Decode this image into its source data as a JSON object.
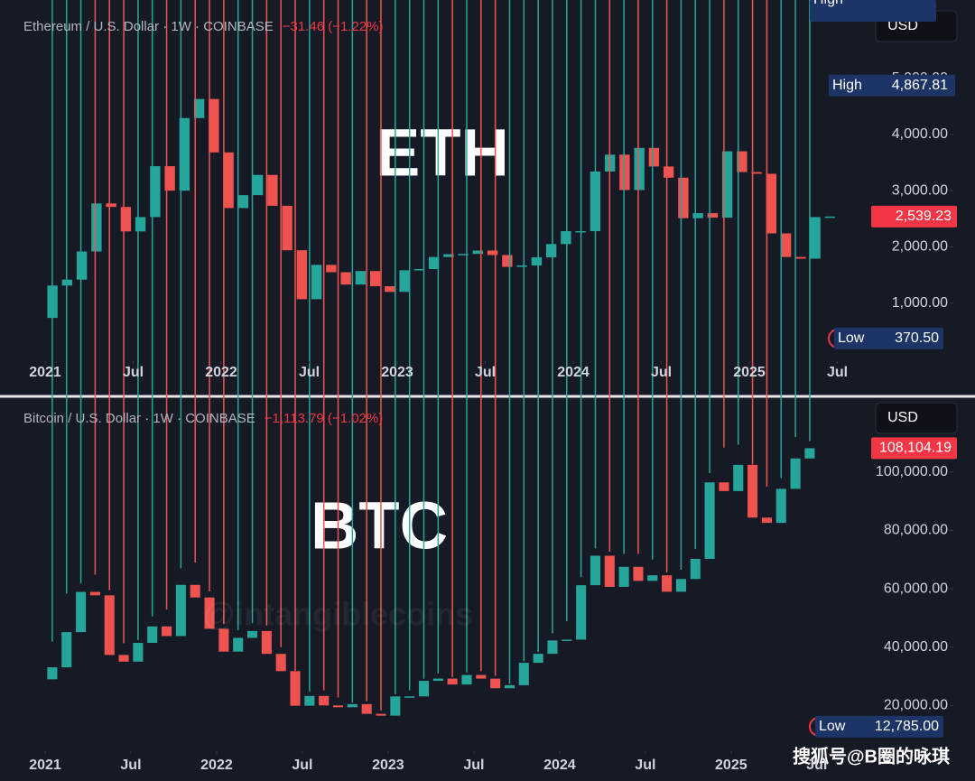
{
  "chart_data": [
    {
      "type": "candlestick",
      "title": "Ethereum / U.S. Dollar · 1W · COINBASE",
      "change": "−31.46 (−1.22%)",
      "overlay": "ETH",
      "currency": "USD",
      "up_color": "#26a69a",
      "down_color": "#ef5350",
      "grid": false,
      "x": [
        "2021-01",
        "2021-02",
        "2021-03",
        "2021-04",
        "2021-05",
        "2021-06",
        "2021-07",
        "2021-08",
        "2021-09",
        "2021-10",
        "2021-11",
        "2021-12",
        "2022-01",
        "2022-02",
        "2022-03",
        "2022-04",
        "2022-05",
        "2022-06",
        "2022-07",
        "2022-08",
        "2022-09",
        "2022-10",
        "2022-11",
        "2022-12",
        "2023-01",
        "2023-02",
        "2023-03",
        "2023-04",
        "2023-05",
        "2023-06",
        "2023-07",
        "2023-08",
        "2023-09",
        "2023-10",
        "2023-11",
        "2023-12",
        "2024-01",
        "2024-02",
        "2024-03",
        "2024-04",
        "2024-05",
        "2024-06",
        "2024-07",
        "2024-08",
        "2024-09",
        "2024-10",
        "2024-11",
        "2024-12",
        "2025-01",
        "2025-02",
        "2025-03",
        "2025-04",
        "2025-05",
        "2025-06"
      ],
      "open": [
        737,
        1312,
        1418,
        1918,
        2773,
        2710,
        2275,
        2530,
        3435,
        3000,
        4290,
        4630,
        3680,
        2690,
        2920,
        3280,
        2730,
        1940,
        1070,
        1680,
        1550,
        1330,
        1570,
        1300,
        1200,
        1585,
        1605,
        1820,
        1870,
        1875,
        1935,
        1855,
        1645,
        1670,
        1815,
        2050,
        2280,
        2280,
        3340,
        3640,
        3010,
        3760,
        3430,
        3230,
        2510,
        2600,
        2520,
        3700,
        3330,
        3300,
        2240,
        1820,
        1790,
        2530
      ],
      "high": {
        "value": 4867.81,
        "label": "4,867.81"
      },
      "low": {
        "value": 370.5,
        "label": "370.50"
      },
      "close": [
        1312,
        1418,
        1918,
        2773,
        2710,
        2275,
        2530,
        3435,
        3000,
        4290,
        4630,
        3680,
        2690,
        2920,
        3280,
        2730,
        1940,
        1070,
        1680,
        1550,
        1330,
        1570,
        1300,
        1200,
        1585,
        1605,
        1820,
        1870,
        1875,
        1935,
        1855,
        1645,
        1670,
        1815,
        2050,
        2280,
        2280,
        3340,
        3640,
        3010,
        3760,
        3430,
        3230,
        2510,
        2600,
        2520,
        3700,
        3330,
        3300,
        2240,
        1820,
        1790,
        2530,
        2539.23
      ],
      "ylim": [
        0,
        6390
      ],
      "yticks": [
        {
          "value": 1000,
          "label": "1,000.00"
        },
        {
          "value": 2000,
          "label": "2,000.00"
        },
        {
          "value": 3000,
          "label": "3,000.00"
        },
        {
          "value": 4000,
          "label": "4,000.00"
        },
        {
          "value": 5000,
          "label": "5,000.00"
        }
      ],
      "xticks": [
        {
          "value": "2021-01",
          "label": "2021"
        },
        {
          "value": "2021-07",
          "label": "Jul"
        },
        {
          "value": "2022-01",
          "label": "2022"
        },
        {
          "value": "2022-07",
          "label": "Jul"
        },
        {
          "value": "2023-01",
          "label": "2023"
        },
        {
          "value": "2023-07",
          "label": "Jul"
        },
        {
          "value": "2024-01",
          "label": "2024"
        },
        {
          "value": "2024-07",
          "label": "Jul"
        },
        {
          "value": "2025-01",
          "label": "2025"
        },
        {
          "value": "2025-07",
          "label": "Jul"
        }
      ],
      "last_price": {
        "value": 2539.23,
        "label": "2,539.23"
      },
      "high_text": "High",
      "low_text": "Low"
    },
    {
      "type": "candlestick",
      "title": "Bitcoin / U.S. Dollar · 1W · COINBASE",
      "change": "−1,113.79 (−1.02%)",
      "overlay": "BTC",
      "currency": "USD",
      "up_color": "#26a69a",
      "down_color": "#ef5350",
      "grid": false,
      "x": [
        "2021-01",
        "2021-02",
        "2021-03",
        "2021-04",
        "2021-05",
        "2021-06",
        "2021-07",
        "2021-08",
        "2021-09",
        "2021-10",
        "2021-11",
        "2021-12",
        "2022-01",
        "2022-02",
        "2022-03",
        "2022-04",
        "2022-05",
        "2022-06",
        "2022-07",
        "2022-08",
        "2022-09",
        "2022-10",
        "2022-11",
        "2022-12",
        "2023-01",
        "2023-02",
        "2023-03",
        "2023-04",
        "2023-05",
        "2023-06",
        "2023-07",
        "2023-08",
        "2023-09",
        "2023-10",
        "2023-11",
        "2023-12",
        "2024-01",
        "2024-02",
        "2024-03",
        "2024-04",
        "2024-05",
        "2024-06",
        "2024-07",
        "2024-08",
        "2024-09",
        "2024-10",
        "2024-11",
        "2024-12",
        "2025-01",
        "2025-02",
        "2025-03",
        "2025-04",
        "2025-05",
        "2025-06"
      ],
      "open": [
        28990,
        33110,
        45140,
        58920,
        57750,
        37330,
        35040,
        41460,
        47100,
        43790,
        61320,
        57000,
        46300,
        38480,
        43190,
        45540,
        37700,
        31800,
        19950,
        23300,
        20050,
        19430,
        20500,
        17170,
        16550,
        23140,
        23150,
        28480,
        29250,
        27220,
        30480,
        29230,
        25940,
        26970,
        34650,
        37720,
        42280,
        42580,
        61200,
        71300,
        60640,
        67500,
        62700,
        64600,
        58970,
        63330,
        70220,
        96400,
        93430,
        102400,
        84350,
        82550,
        94200,
        104600
      ],
      "high": [
        41950,
        58350,
        61780,
        64850,
        59500,
        41330,
        42400,
        50500,
        52900,
        67000,
        69000,
        59100,
        47900,
        45800,
        48200,
        47400,
        40000,
        31900,
        24700,
        25200,
        22800,
        21000,
        21450,
        18400,
        23900,
        25250,
        29200,
        31000,
        29800,
        31400,
        31800,
        30200,
        27500,
        35200,
        38400,
        44700,
        48900,
        64000,
        73800,
        72700,
        71900,
        71900,
        70000,
        65600,
        66500,
        73600,
        99600,
        108300,
        109300,
        102500,
        95000,
        97900,
        111900,
        110500
      ],
      "low": {
        "value": 12785,
        "label": "12,785.00"
      },
      "close": [
        33110,
        45140,
        58920,
        57750,
        37330,
        35040,
        41460,
        47100,
        43790,
        61320,
        57000,
        46300,
        38480,
        43190,
        45540,
        37700,
        31800,
        19950,
        23300,
        20050,
        19430,
        20500,
        17170,
        16550,
        23140,
        23150,
        28480,
        29250,
        27220,
        30480,
        29230,
        25940,
        26970,
        34650,
        37720,
        42280,
        42580,
        61200,
        71300,
        60640,
        67500,
        62700,
        64600,
        58970,
        63330,
        70220,
        96400,
        93430,
        102400,
        84350,
        82550,
        94200,
        104600,
        108104.19
      ],
      "ylim": [
        5000,
        124000
      ],
      "yticks": [
        {
          "value": 20000,
          "label": "20,000.00"
        },
        {
          "value": 40000,
          "label": "40,000.00"
        },
        {
          "value": 60000,
          "label": "60,000.00"
        },
        {
          "value": 80000,
          "label": "80,000.00"
        },
        {
          "value": 100000,
          "label": "100,000.00"
        }
      ],
      "xticks": [
        {
          "value": "2021-01",
          "label": "2021"
        },
        {
          "value": "2021-07",
          "label": "Jul"
        },
        {
          "value": "2022-01",
          "label": "2022"
        },
        {
          "value": "2022-07",
          "label": "Jul"
        },
        {
          "value": "2023-01",
          "label": "2023"
        },
        {
          "value": "2023-07",
          "label": "Jul"
        },
        {
          "value": "2024-01",
          "label": "2024"
        },
        {
          "value": "2024-07",
          "label": "Jul"
        },
        {
          "value": "2025-01",
          "label": "2025"
        },
        {
          "value": "2025-07",
          "label": "Jul"
        }
      ],
      "last_price": {
        "value": 108104.19,
        "label": "108,104.19"
      },
      "high_text": "High",
      "low_text": "Low"
    }
  ],
  "watermark": "@intangiblecoins",
  "footer": "搜狐号@B圈的咏琪"
}
